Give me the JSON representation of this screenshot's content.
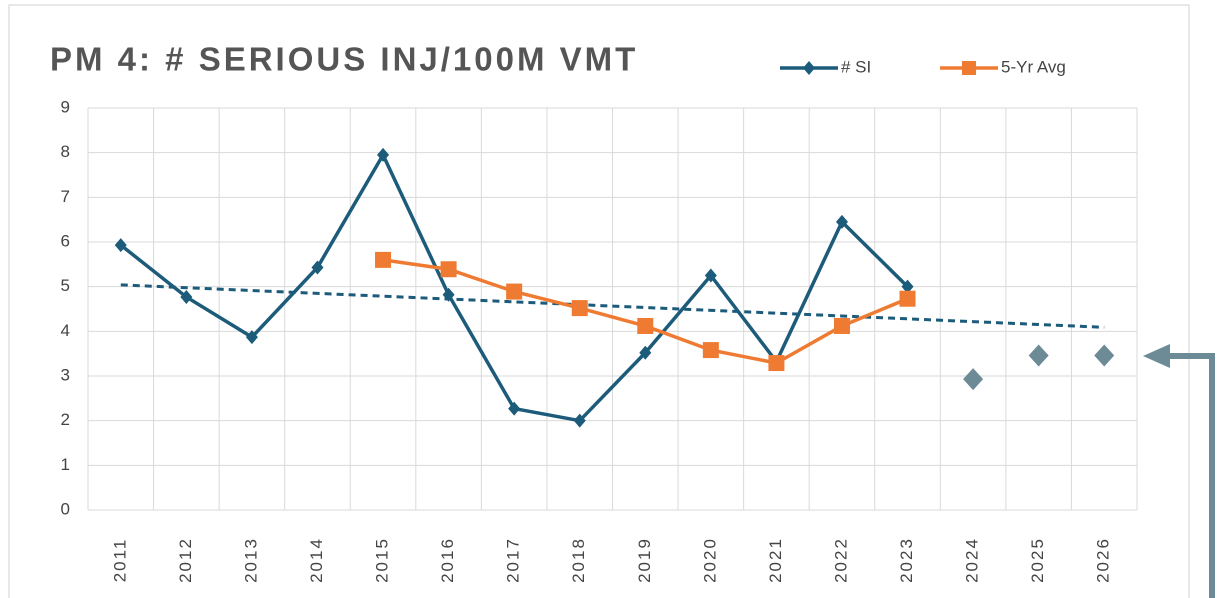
{
  "chart_data": {
    "type": "line",
    "title": "PM 4: # SERIOUS INJ/100M VMT",
    "categories": [
      "2011",
      "2012",
      "2013",
      "2014",
      "2015",
      "2016",
      "2017",
      "2018",
      "2019",
      "2020",
      "2021",
      "2022",
      "2023",
      "2024",
      "2025",
      "2026"
    ],
    "series": [
      {
        "name": "# SI",
        "color": "#1c5b7a",
        "marker": "diamond",
        "values": [
          5.93,
          4.77,
          3.87,
          5.43,
          7.95,
          4.82,
          2.27,
          2.0,
          3.52,
          5.25,
          3.32,
          6.45,
          5.0,
          null,
          null,
          null
        ]
      },
      {
        "name": "5-Yr Avg",
        "color": "#ef7b32",
        "marker": "square",
        "values": [
          null,
          null,
          null,
          null,
          5.6,
          5.39,
          4.89,
          4.52,
          4.12,
          3.58,
          3.29,
          4.12,
          4.73,
          null,
          null,
          null
        ]
      },
      {
        "color": "#6c8b97",
        "marker": "diamond",
        "line": false,
        "values": [
          null,
          null,
          null,
          null,
          null,
          null,
          null,
          null,
          null,
          null,
          null,
          null,
          null,
          2.93,
          3.46,
          3.46
        ]
      }
    ],
    "trendline": {
      "color": "#1c5b7a",
      "values": [
        5.04,
        4.09
      ]
    },
    "ylim": [
      0,
      9
    ],
    "yticks": [
      0,
      1,
      2,
      3,
      4,
      5,
      6,
      7,
      8,
      9
    ],
    "grid": true,
    "legend": "top"
  }
}
